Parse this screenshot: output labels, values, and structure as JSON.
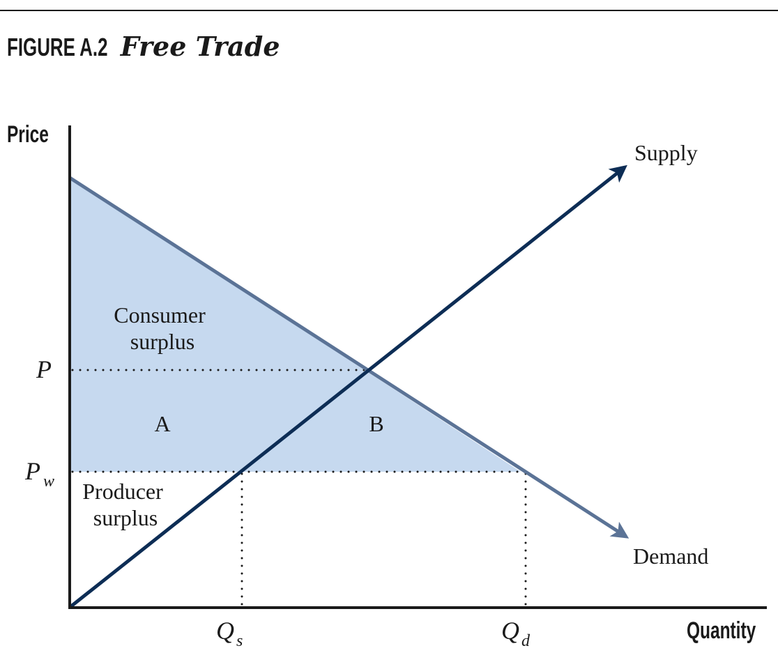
{
  "figure": {
    "number": "FIGURE A.2",
    "title": "Free Trade"
  },
  "axes": {
    "y_title": "Price",
    "x_title": "Quantity"
  },
  "curves": {
    "supply": "Supply",
    "demand": "Demand"
  },
  "regions": {
    "consumer_surplus": [
      "Consumer",
      "surplus"
    ],
    "producer_surplus": [
      "Producer",
      "surplus"
    ],
    "area_a": "A",
    "area_b": "B"
  },
  "price_levels": {
    "p": "P",
    "pw_main": "P",
    "pw_sub": "w"
  },
  "quantity_levels": {
    "qs_main": "Q",
    "qs_sub": "s",
    "qd_main": "Q",
    "qd_sub": "d"
  },
  "colors": {
    "supply_line": "#0d2d55",
    "demand_line": "#5b7396",
    "surplus_fill": "#c6d9ef",
    "axis": "#1a1a1a"
  }
}
